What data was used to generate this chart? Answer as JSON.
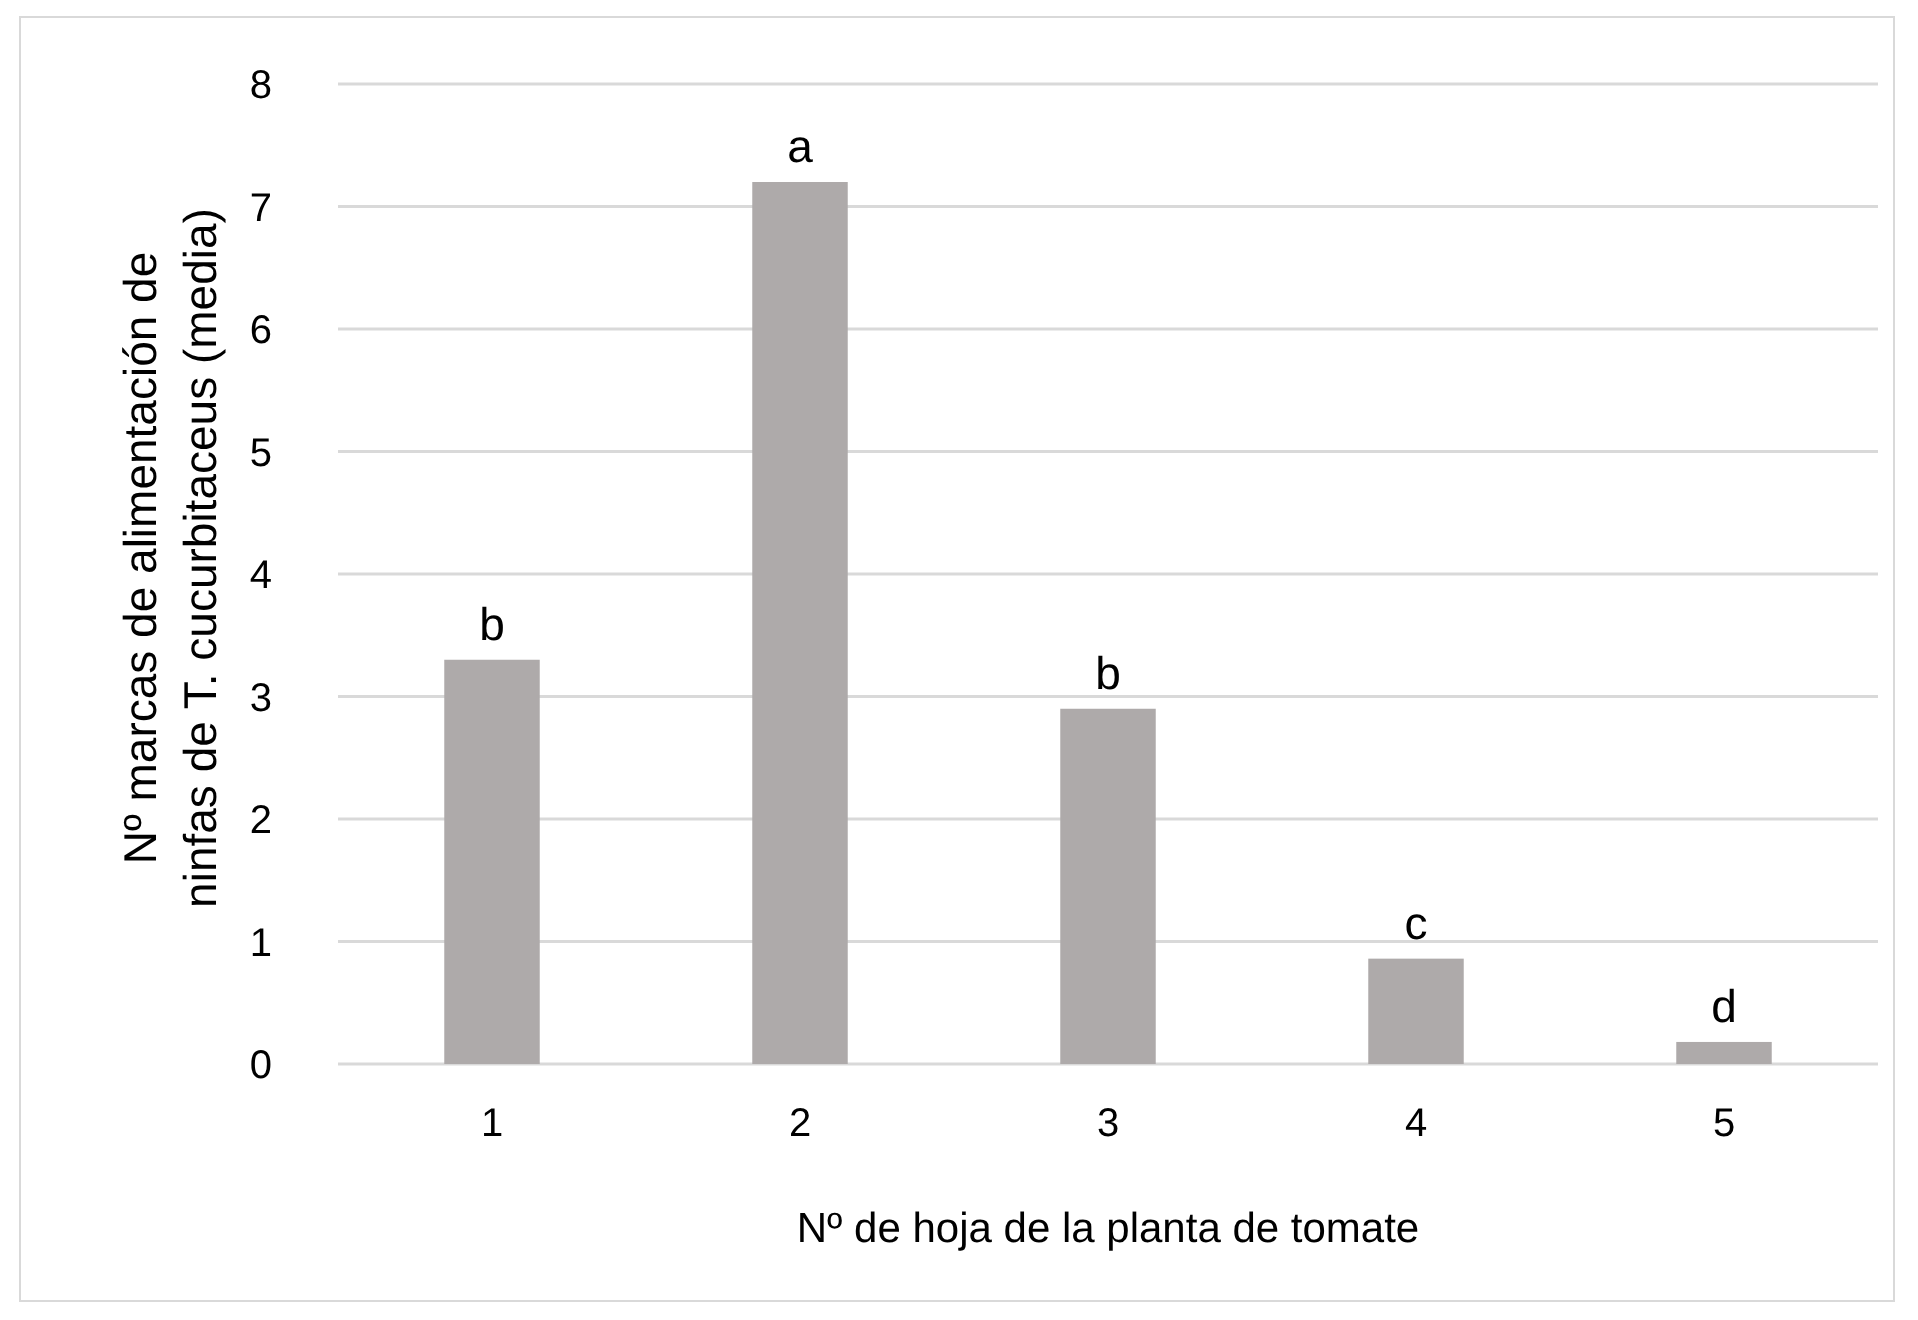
{
  "chart_data": {
    "type": "bar",
    "categories": [
      "1",
      "2",
      "3",
      "4",
      "5"
    ],
    "values": [
      3.3,
      7.2,
      2.9,
      0.86,
      0.18
    ],
    "color": "#aeaaaa",
    "xlabel": "Nº de hoja de la planta de tomate",
    "ylabel": "Nº marcas de alimentación de ninfas de T. cucurbitaceus (media)",
    "ylim": [
      0,
      8
    ],
    "yticks": [
      0,
      1,
      2,
      3,
      4,
      5,
      6,
      7,
      8
    ],
    "grid": "y",
    "annotations": [
      {
        "text": "b",
        "x": "1",
        "y": 3.3
      },
      {
        "text": "a",
        "x": "2",
        "y": 7.2
      },
      {
        "text": "b",
        "x": "3",
        "y": 2.9
      },
      {
        "text": "c",
        "x": "4",
        "y": 0.86
      },
      {
        "text": "d",
        "x": "5",
        "y": 0.18
      }
    ]
  }
}
